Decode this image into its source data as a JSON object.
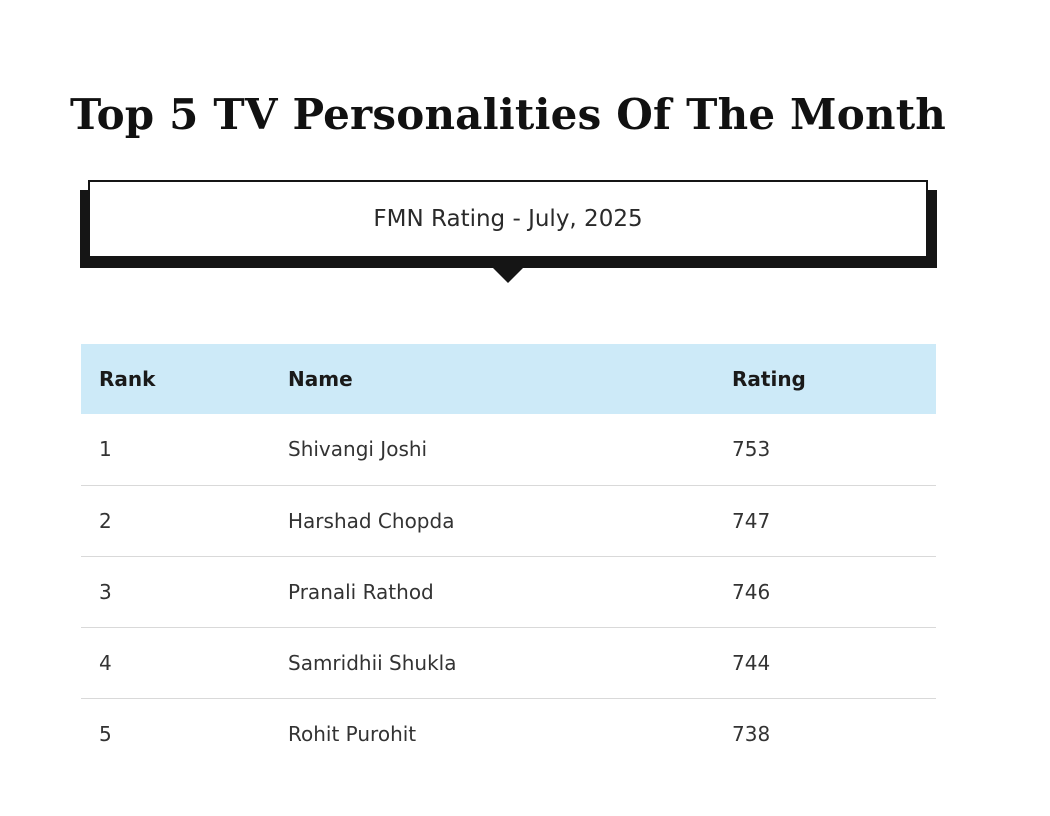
{
  "title": "Top 5 TV Personalities Of The Month",
  "subtitle": "FMN Rating - July, 2025",
  "table": {
    "headers": {
      "rank": "Rank",
      "name": "Name",
      "rating": "Rating"
    },
    "rows": [
      {
        "rank": "1",
        "name": "Shivangi Joshi",
        "rating": "753"
      },
      {
        "rank": "2",
        "name": "Harshad Chopda",
        "rating": "747"
      },
      {
        "rank": "3",
        "name": "Pranali Rathod",
        "rating": "746"
      },
      {
        "rank": "4",
        "name": "Samridhii Shukla",
        "rating": "744"
      },
      {
        "rank": "5",
        "name": "Rohit Purohit",
        "rating": "738"
      }
    ]
  },
  "colors": {
    "header_background": "#cdeaf8",
    "box_border": "#151515",
    "row_divider": "#d9d9d9"
  }
}
